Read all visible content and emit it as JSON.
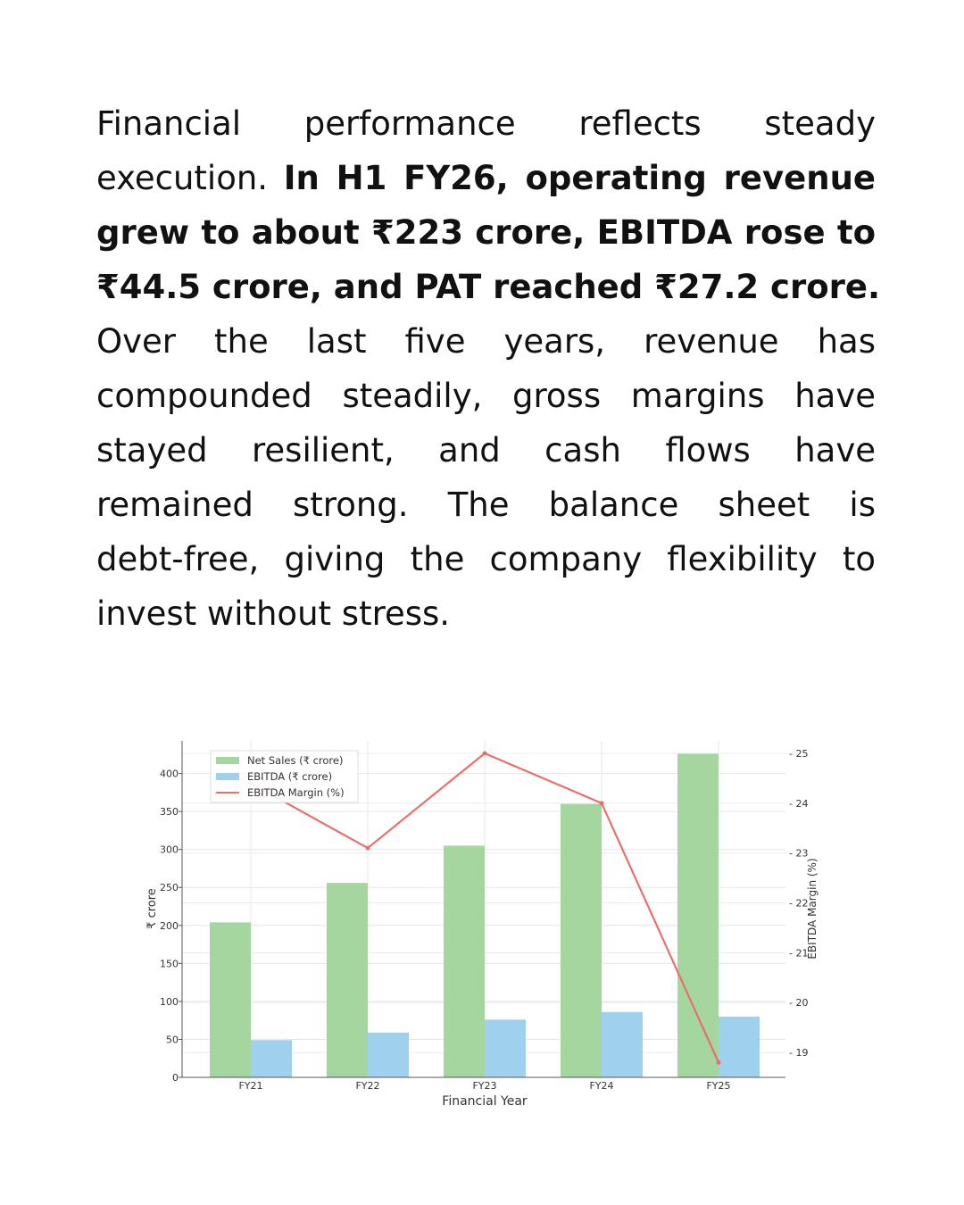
{
  "paragraph": {
    "lines": [
      [
        {
          "t": "Financial performance reflects steady",
          "b": false
        }
      ],
      [
        {
          "t": "execution. ",
          "b": false
        },
        {
          "t": "In H1 FY26, operating revenue",
          "b": true
        }
      ],
      [
        {
          "t": "grew to about ₹223 crore, EBITDA rose to",
          "b": true
        }
      ],
      [
        {
          "t": "₹44.5 crore, and PAT reached ₹27.2 crore.",
          "b": true
        }
      ],
      [
        {
          "t": "Over the last five years, revenue has",
          "b": false
        }
      ],
      [
        {
          "t": "compounded steadily, gross margins have",
          "b": false
        }
      ],
      [
        {
          "t": "stayed resilient, and cash flows have",
          "b": false
        }
      ],
      [
        {
          "t": "remained strong. The balance sheet is",
          "b": false
        }
      ],
      [
        {
          "t": "debt-free, giving the company flexibility to",
          "b": false
        }
      ],
      [
        {
          "t": "invest without stress.",
          "b": false
        }
      ]
    ]
  },
  "chart_data": {
    "type": "bar",
    "categories": [
      "FY21",
      "FY22",
      "FY23",
      "FY24",
      "FY25"
    ],
    "series": [
      {
        "name": "Net Sales (₹ crore)",
        "type": "bar",
        "axis": "left",
        "color": "#a5d6a0",
        "values": [
          204,
          256,
          305,
          360,
          426
        ]
      },
      {
        "name": "EBITDA (₹ crore)",
        "type": "bar",
        "axis": "left",
        "color": "#9fd0ee",
        "values": [
          49,
          59,
          76,
          86,
          80
        ]
      },
      {
        "name": "EBITDA Margin (%)",
        "type": "line",
        "axis": "right",
        "color": "#e8706b",
        "values": [
          24.4,
          23.1,
          25.0,
          24.0,
          18.8
        ]
      }
    ],
    "xlabel": "Financial Year",
    "ylabel": "₹ crore",
    "y2label": "EBITDA Margin (%)",
    "ylim": [
      0,
      443
    ],
    "y2lim": [
      18.5,
      25.25
    ],
    "yticks": [
      0,
      50,
      100,
      150,
      200,
      250,
      300,
      350,
      400
    ],
    "y2ticks": [
      19,
      20,
      21,
      22,
      23,
      24,
      25
    ],
    "grid": true,
    "legend": "top-left"
  }
}
